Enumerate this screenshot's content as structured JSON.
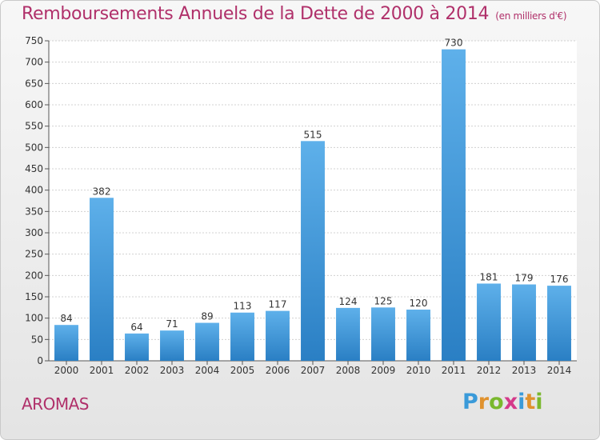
{
  "header": {
    "title": "Remboursements Annuels de la Dette de 2000 à 2014",
    "unit": "(en milliers d'€)"
  },
  "footer": {
    "commune": "AROMAS",
    "logo": "Proxiti"
  },
  "colors": {
    "title": "#b0306a",
    "bar_light": "#5eb0ea",
    "bar_dark": "#2a7fc4",
    "grid": "#d0d0d0",
    "logo_letters": [
      "#3a9ad9",
      "#e0922e",
      "#7ab82e",
      "#d43a8a",
      "#3a9ad9",
      "#e0922e",
      "#7ab82e"
    ]
  },
  "chart_data": {
    "type": "bar",
    "categories": [
      "2000",
      "2001",
      "2002",
      "2003",
      "2004",
      "2005",
      "2006",
      "2007",
      "2008",
      "2009",
      "2010",
      "2011",
      "2012",
      "2013",
      "2014"
    ],
    "values": [
      84,
      382,
      64,
      71,
      89,
      113,
      117,
      515,
      124,
      125,
      120,
      730,
      181,
      179,
      176
    ],
    "title": "Remboursements Annuels de la Dette de 2000 à 2014",
    "xlabel": "",
    "ylabel": "",
    "ylim": [
      0,
      750
    ],
    "yticks": [
      0,
      50,
      100,
      150,
      200,
      250,
      300,
      350,
      400,
      450,
      500,
      550,
      600,
      650,
      700,
      750
    ],
    "grid": true,
    "data_labels": true
  }
}
